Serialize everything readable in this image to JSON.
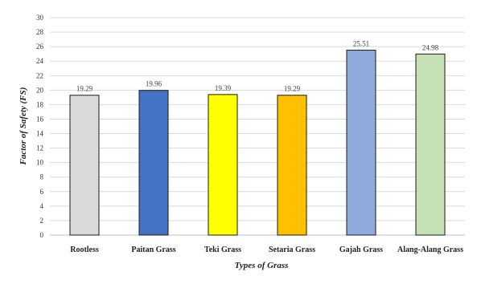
{
  "chart_data": {
    "type": "bar",
    "title": "",
    "xlabel": "Types of Grass",
    "ylabel": "Factor of Safety (FS)",
    "categories": [
      "Rootless",
      "Paitan Grass",
      "Teki Grass",
      "Setaria Grass",
      "Gajah Grass",
      "Alang-Alang Grass"
    ],
    "values": [
      19.29,
      19.96,
      19.39,
      19.29,
      25.51,
      24.98
    ],
    "data_labels": [
      "19.29",
      "19.96",
      "19.39",
      "19.29",
      "25.51",
      "24.98"
    ],
    "colors": [
      "#d9d9d9",
      "#4472c4",
      "#ffff00",
      "#ffc000",
      "#8faadc",
      "#c5e0b4"
    ],
    "ylim": [
      0,
      30
    ],
    "yticks": [
      0,
      2,
      4,
      6,
      8,
      10,
      12,
      14,
      16,
      18,
      20,
      22,
      24,
      26,
      28,
      30
    ],
    "grid": true,
    "legend": "none"
  }
}
